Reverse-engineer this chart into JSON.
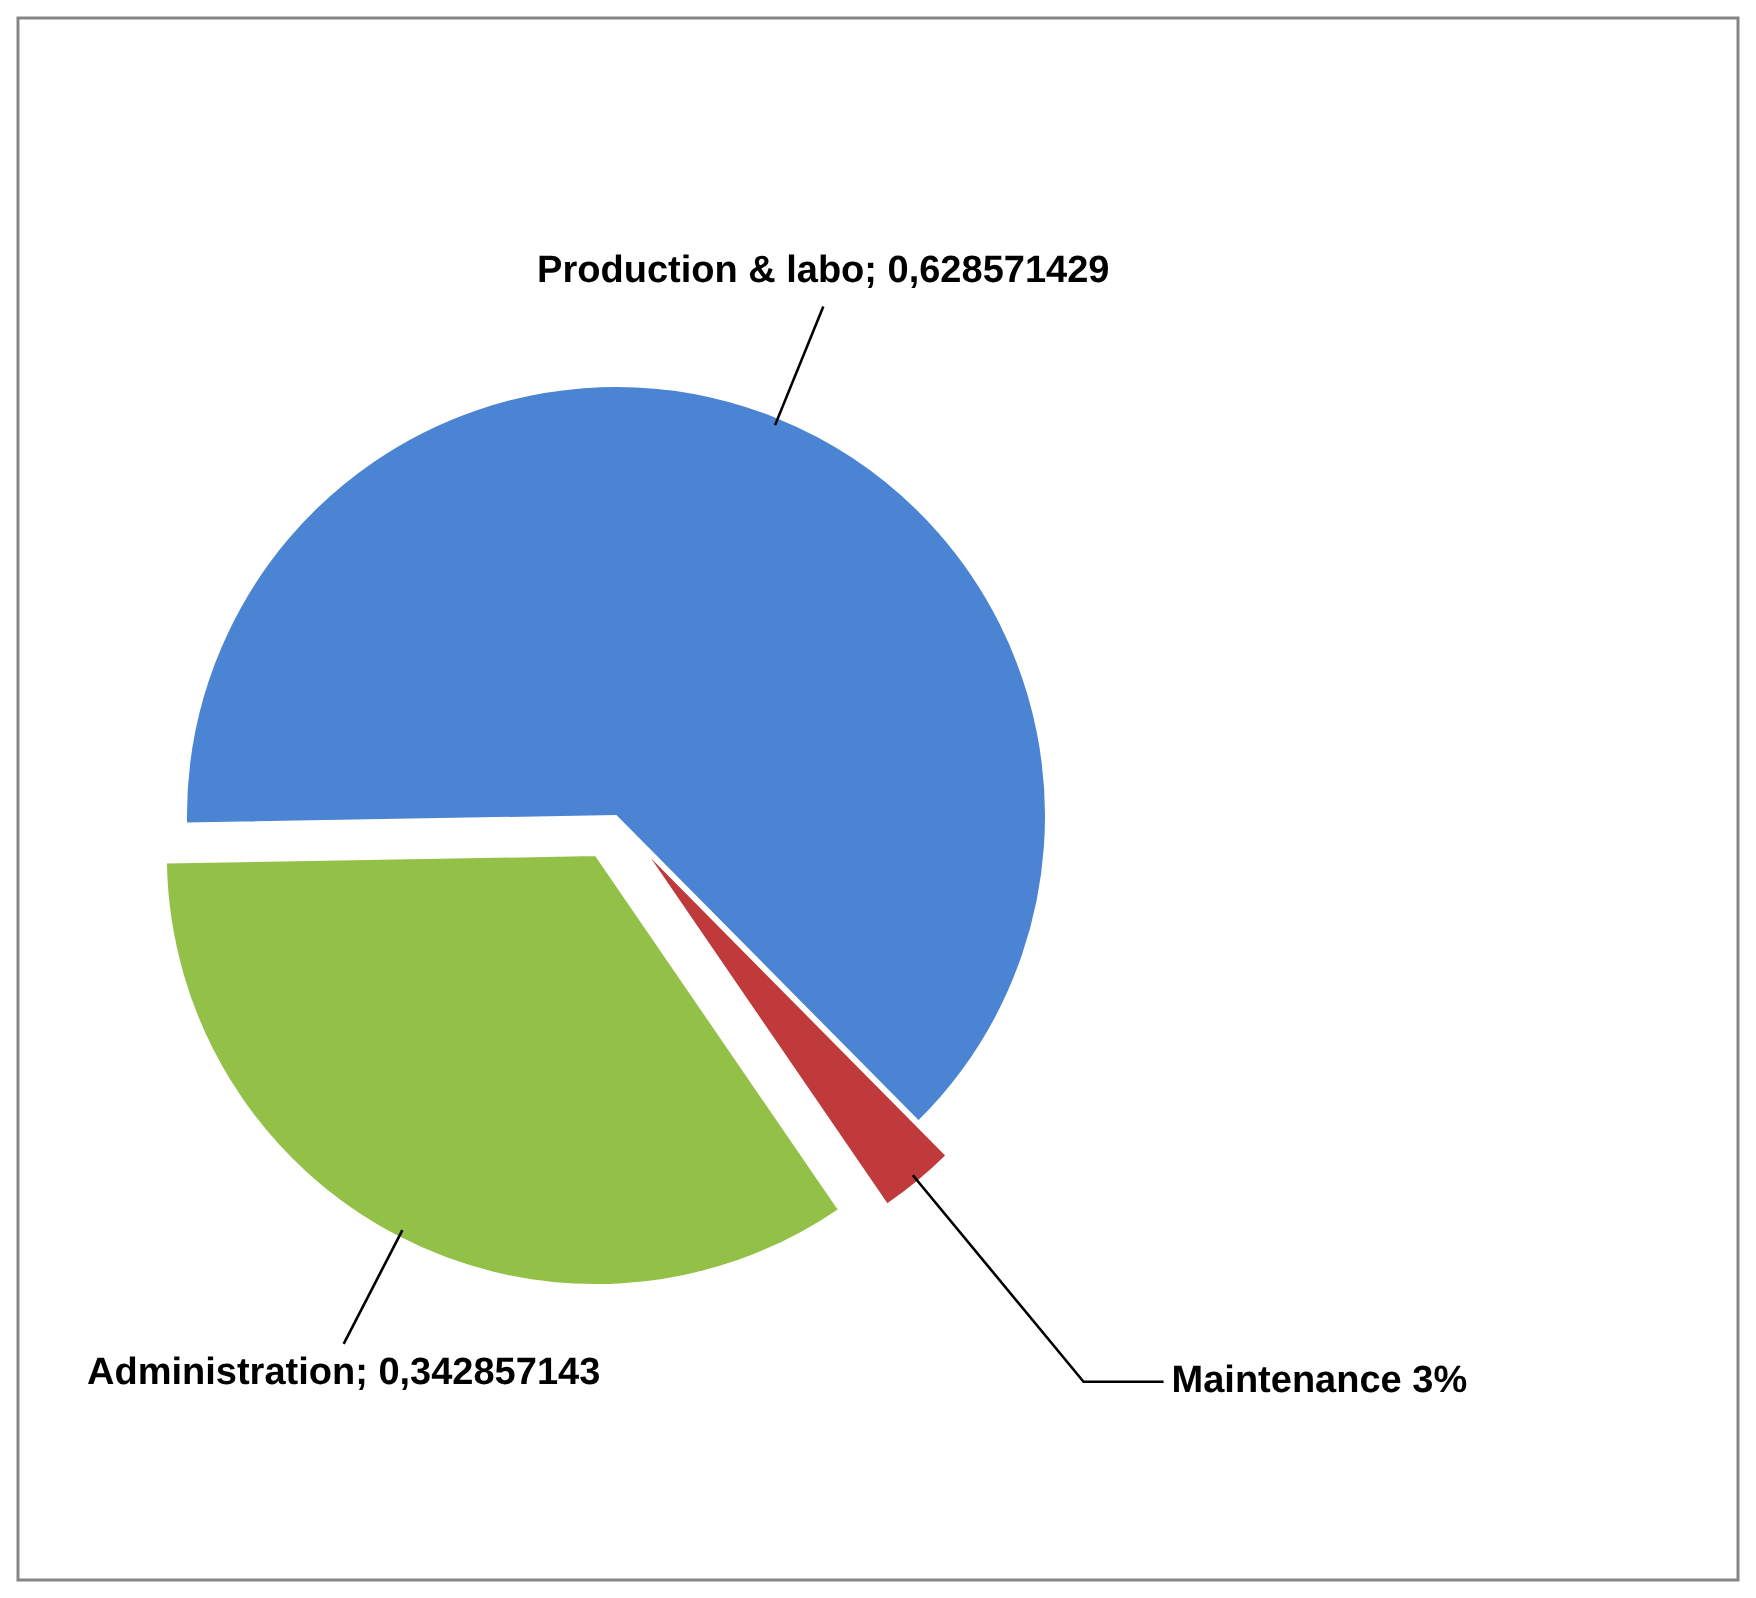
{
  "chart_data": {
    "type": "pie",
    "categories": [
      "Production & labo",
      "Maintenance",
      "Administration"
    ],
    "values": [
      0.628571429,
      0.028571428,
      0.342857143
    ],
    "value_labels": [
      "0,628571429",
      "3%",
      "0,342857143"
    ],
    "colors": [
      "#4a84d2",
      "#c0393b",
      "#93c147"
    ]
  }
}
